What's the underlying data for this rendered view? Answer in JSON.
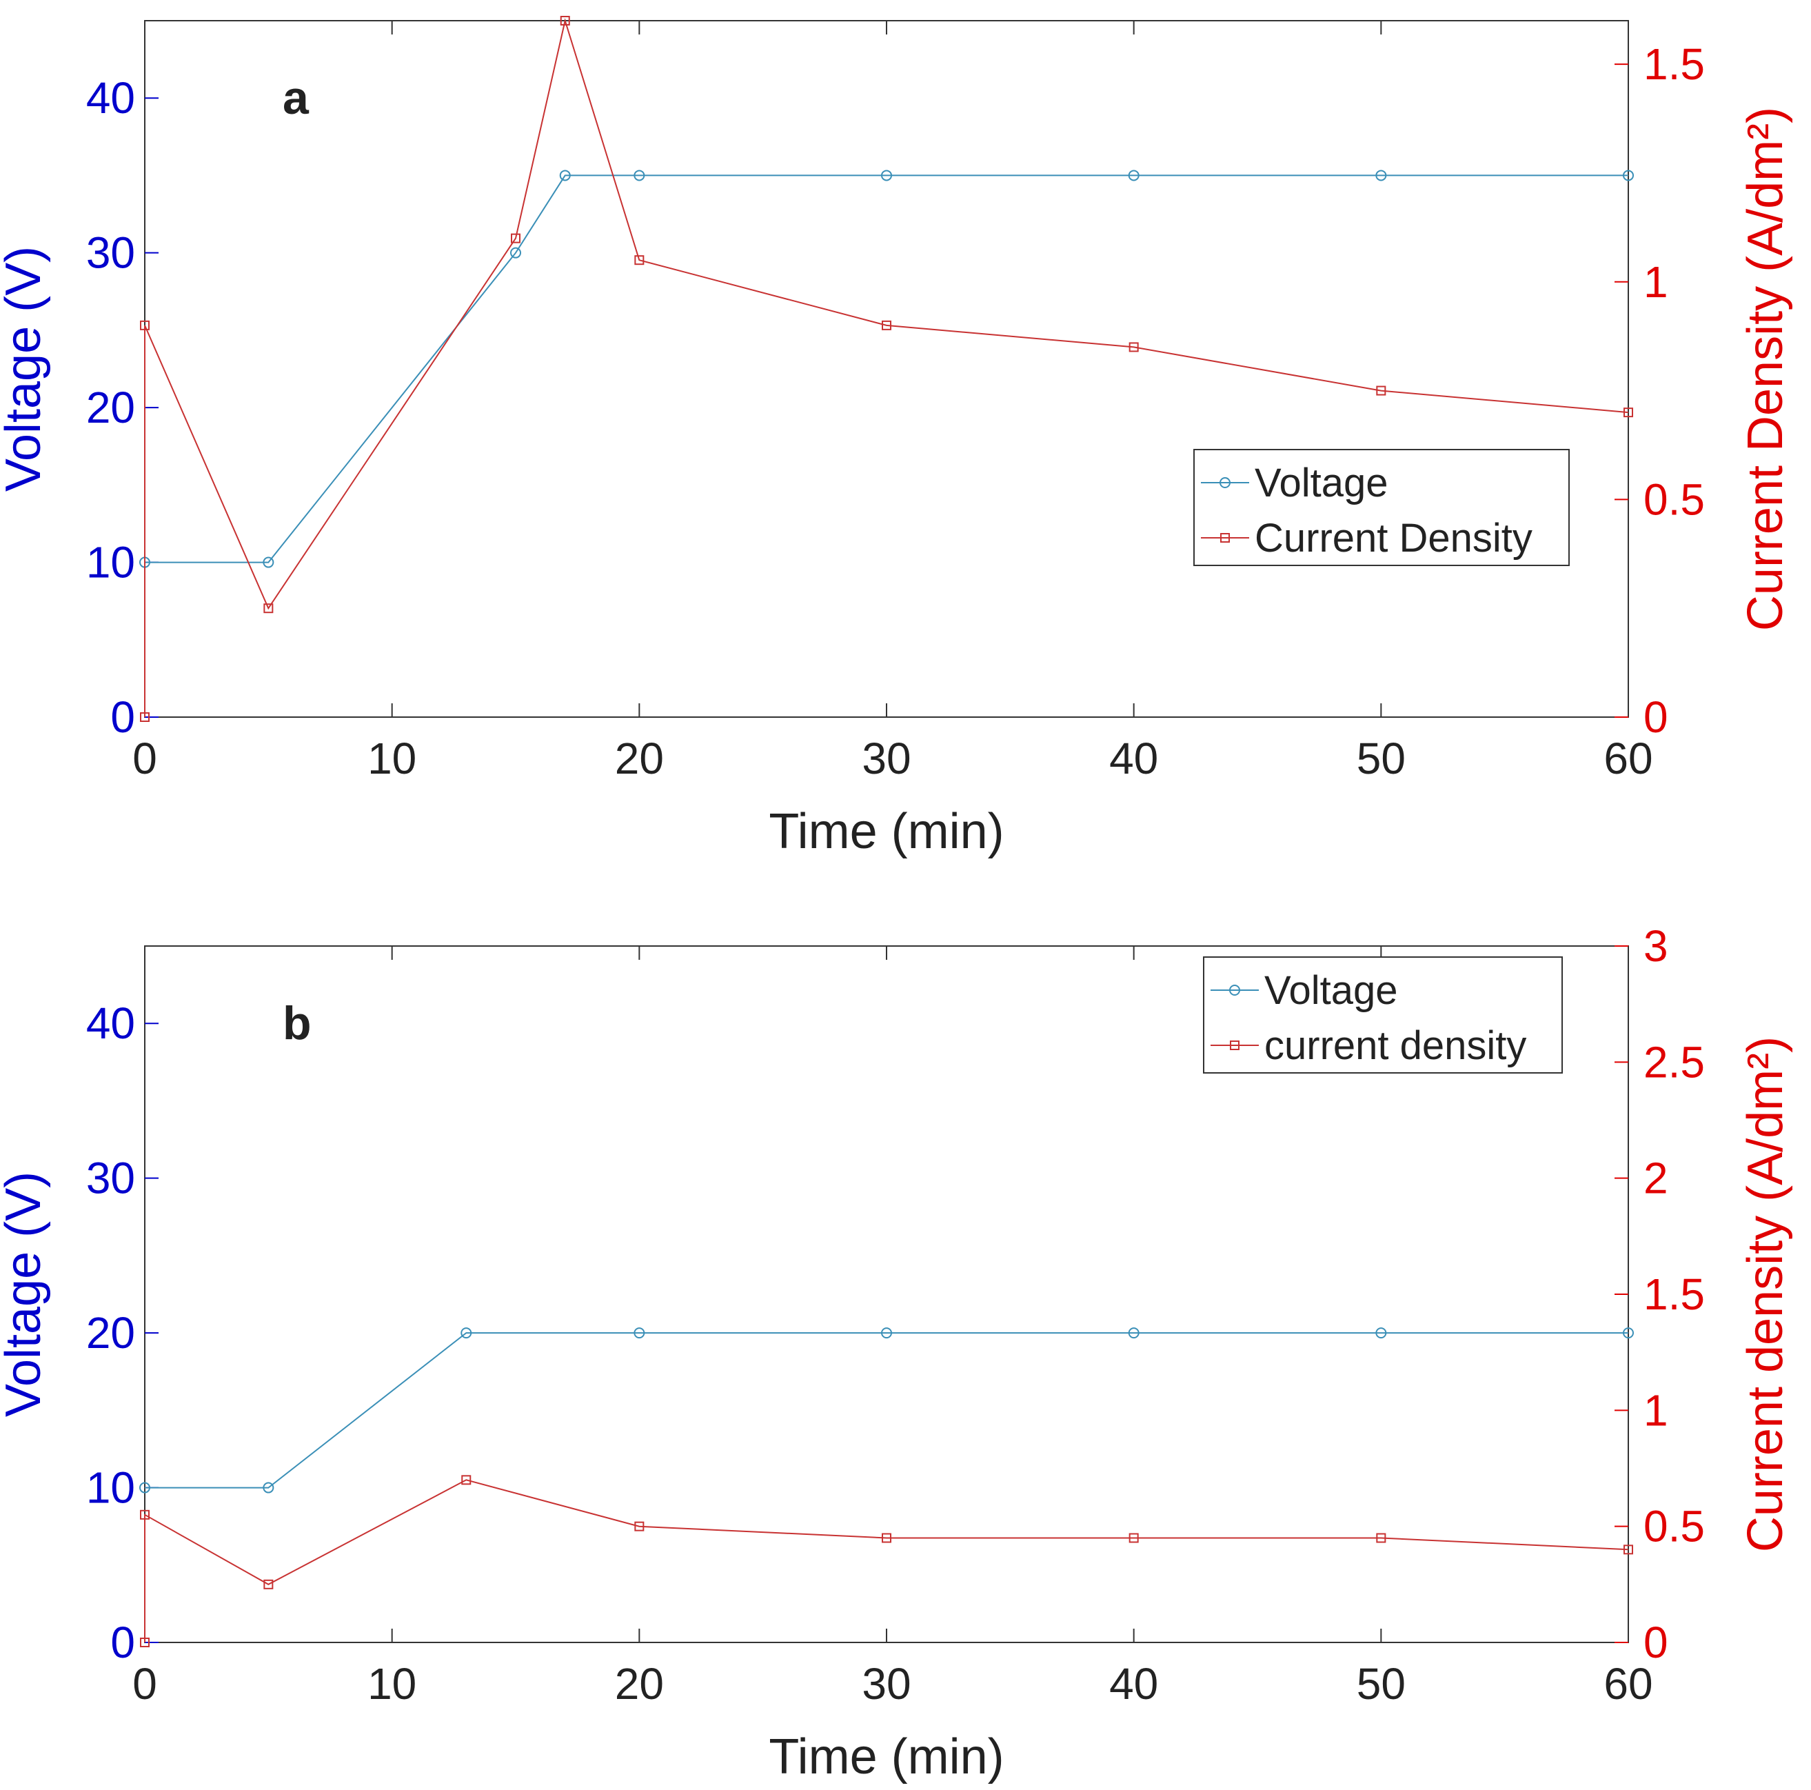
{
  "figure": {
    "panels": [
      "a",
      "b"
    ]
  },
  "colors": {
    "voltage_axis": "#0000cc",
    "current_axis": "#e00000",
    "voltage_series": "#3a8fb7",
    "current_series": "#c83232",
    "axes": "#333333",
    "text": "#222222"
  },
  "chart_data": [
    {
      "type": "line",
      "panel_label": "a",
      "xlabel": "Time (min)",
      "ylabel_left": "Voltage (V)",
      "ylabel_right": "Current Density (A/dm²)",
      "xlim": [
        0,
        60
      ],
      "ylim_left": [
        0,
        45
      ],
      "ylim_right": [
        0,
        1.6
      ],
      "x_ticks": [
        0,
        10,
        20,
        30,
        40,
        50,
        60
      ],
      "x_tick_labels": [
        "0",
        "10",
        "20",
        "30",
        "40",
        "50",
        "60"
      ],
      "left_ticks": [
        0,
        10,
        20,
        30,
        40
      ],
      "left_tick_labels": [
        "0",
        "10",
        "20",
        "30",
        "40"
      ],
      "right_ticks": [
        0,
        0.5,
        1,
        1.5
      ],
      "right_tick_labels": [
        "0",
        "0.5",
        "1",
        "1.5"
      ],
      "legend": {
        "position": "center-right",
        "entries": [
          "Voltage",
          "Current Density"
        ]
      },
      "series": [
        {
          "name": "Voltage",
          "axis": "left",
          "marker": "circle",
          "x": [
            0,
            5,
            15,
            17,
            20,
            30,
            40,
            50,
            60
          ],
          "y": [
            10,
            10,
            30,
            35,
            35,
            35,
            35,
            35,
            35
          ]
        },
        {
          "name": "Current Density",
          "axis": "right",
          "marker": "square",
          "x": [
            0,
            0,
            5,
            15,
            17,
            20,
            30,
            40,
            50,
            60
          ],
          "y": [
            0,
            0.9,
            0.25,
            1.1,
            1.6,
            1.05,
            0.9,
            0.85,
            0.75,
            0.7
          ]
        }
      ]
    },
    {
      "type": "line",
      "panel_label": "b",
      "xlabel": "Time (min)",
      "ylabel_left": "Voltage (V)",
      "ylabel_right": "Current density (A/dm²)",
      "xlim": [
        0,
        60
      ],
      "ylim_left": [
        0,
        45
      ],
      "ylim_right": [
        0,
        3
      ],
      "x_ticks": [
        0,
        10,
        20,
        30,
        40,
        50,
        60
      ],
      "x_tick_labels": [
        "0",
        "10",
        "20",
        "30",
        "40",
        "50",
        "60"
      ],
      "left_ticks": [
        0,
        10,
        20,
        30,
        40
      ],
      "left_tick_labels": [
        "0",
        "10",
        "20",
        "30",
        "40"
      ],
      "right_ticks": [
        0,
        0.5,
        1,
        1.5,
        2,
        2.5,
        3
      ],
      "right_tick_labels": [
        "0",
        "0.5",
        "1",
        "1.5",
        "2",
        "2.5",
        "3"
      ],
      "legend": {
        "position": "top-right",
        "entries": [
          "Voltage",
          "current density"
        ]
      },
      "series": [
        {
          "name": "Voltage",
          "axis": "left",
          "marker": "circle",
          "x": [
            0,
            5,
            13,
            20,
            30,
            40,
            50,
            60
          ],
          "y": [
            10,
            10,
            20,
            20,
            20,
            20,
            20,
            20
          ]
        },
        {
          "name": "current density",
          "axis": "right",
          "marker": "square",
          "x": [
            0,
            0,
            5,
            13,
            20,
            30,
            40,
            50,
            60
          ],
          "y": [
            0,
            0.55,
            0.25,
            0.7,
            0.5,
            0.45,
            0.45,
            0.45,
            0.4
          ]
        }
      ]
    }
  ]
}
